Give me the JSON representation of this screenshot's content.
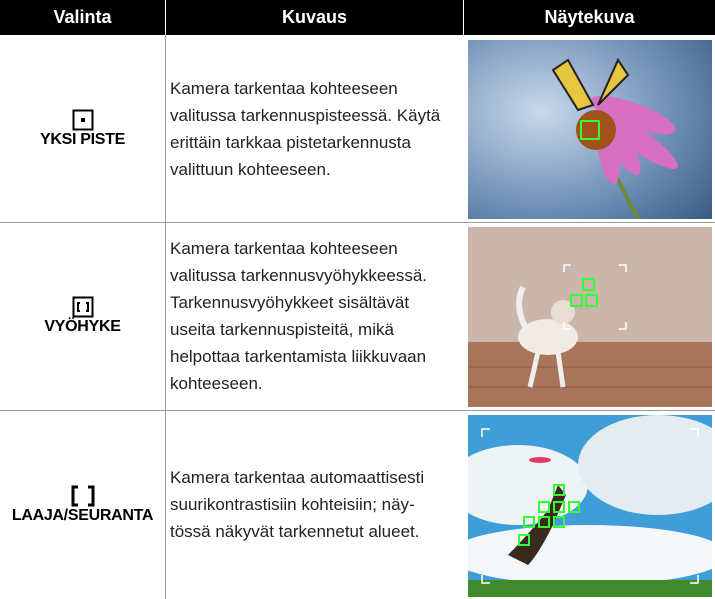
{
  "header": {
    "columns": [
      "Valinta",
      "Kuvaus",
      "Näytekuva"
    ]
  },
  "rows": [
    {
      "label": "YKSI PISTE",
      "description_lines": [
        "Kamera tarkentaa kohteeseen",
        "valitussa tarkennuspisteessä. Käytä",
        "erittäin tarkkaa pistetarkennusta",
        "valittuun kohteeseen."
      ]
    },
    {
      "label": "VYÖHYKE",
      "description_lines": [
        "Kamera tarkentaa kohteeseen",
        "valitussa tarkennusvyöhykkeessä.",
        "Tarkennusvyöhykkeet sisältävät",
        "useita tarkennuspisteitä, mikä",
        "helpottaa tarkentamista liikkuvaan",
        "kohteeseen."
      ]
    },
    {
      "label": "LAAJA/SEURANTA",
      "description_lines": [
        "Kamera tarkentaa automaattisesti",
        "suurikontrastisiin kohteisiin; näy-",
        "tössä näkyvät tarkennetut alueet."
      ]
    }
  ]
}
